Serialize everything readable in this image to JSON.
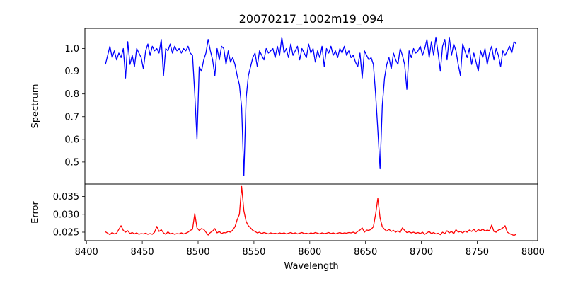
{
  "chart_data": [
    {
      "type": "line",
      "title": "20070217_1002m19_094",
      "xlabel": "",
      "ylabel": "Spectrum",
      "xlim": [
        8398.6,
        8804.2
      ],
      "ylim": [
        0.403,
        1.089
      ],
      "yticks": [
        0.5,
        0.6,
        0.7,
        0.8,
        0.9,
        1.0
      ],
      "ytick_labels": [
        "0.5",
        "0.6",
        "0.7",
        "0.8",
        "0.9",
        "1.0"
      ],
      "color": "#0000ff",
      "x_start": 8417,
      "x_step": 2,
      "values": [
        0.93,
        0.97,
        1.01,
        0.96,
        0.99,
        0.95,
        0.98,
        0.96,
        1.0,
        0.87,
        1.03,
        0.93,
        0.97,
        0.92,
        1.0,
        0.98,
        0.96,
        0.91,
        0.99,
        1.02,
        0.97,
        1.01,
        0.99,
        1.0,
        0.98,
        1.04,
        0.88,
        1.0,
        0.99,
        1.02,
        0.98,
        1.01,
        0.99,
        1.0,
        0.98,
        1.0,
        0.99,
        1.01,
        0.98,
        0.97,
        0.8,
        0.6,
        0.92,
        0.9,
        0.95,
        0.98,
        1.04,
        0.99,
        0.95,
        0.88,
        1.0,
        0.95,
        1.01,
        1.0,
        0.93,
        0.99,
        0.94,
        0.96,
        0.93,
        0.88,
        0.84,
        0.74,
        0.44,
        0.78,
        0.88,
        0.92,
        0.96,
        0.98,
        0.92,
        0.99,
        0.97,
        0.95,
        1.0,
        0.98,
        0.99,
        1.0,
        0.96,
        1.01,
        0.97,
        1.05,
        0.98,
        1.0,
        0.96,
        1.02,
        0.97,
        0.99,
        1.01,
        0.95,
        1.0,
        0.98,
        0.96,
        1.02,
        0.98,
        1.0,
        0.94,
        0.99,
        0.96,
        1.01,
        0.92,
        1.0,
        0.98,
        1.01,
        0.97,
        0.99,
        0.96,
        1.0,
        0.98,
        1.01,
        0.97,
        0.99,
        0.96,
        0.97,
        0.94,
        0.92,
        0.98,
        0.87,
        0.99,
        0.97,
        0.95,
        0.96,
        0.93,
        0.8,
        0.64,
        0.47,
        0.75,
        0.87,
        0.93,
        0.96,
        0.91,
        0.98,
        0.95,
        0.93,
        1.0,
        0.97,
        0.93,
        0.82,
        0.99,
        0.96,
        1.0,
        0.98,
        0.99,
        1.01,
        0.97,
        1.0,
        1.04,
        0.96,
        1.03,
        0.97,
        1.05,
        0.98,
        0.9,
        1.01,
        1.04,
        0.95,
        1.05,
        0.97,
        1.02,
        0.99,
        0.93,
        0.88,
        1.02,
        0.99,
        0.96,
        1.0,
        0.93,
        0.98,
        0.94,
        0.9,
        0.99,
        0.96,
        1.0,
        0.93,
        0.98,
        1.01,
        0.95,
        1.0,
        0.97,
        0.92,
        0.99,
        0.97,
        0.99,
        1.01,
        0.98,
        1.03,
        1.02
      ]
    },
    {
      "type": "line",
      "title": "",
      "xlabel": "Wavelength",
      "ylabel": "Error",
      "xlim": [
        8398.6,
        8804.2
      ],
      "ylim": [
        0.02262,
        0.03847
      ],
      "xticks": [
        8400,
        8450,
        8500,
        8550,
        8600,
        8650,
        8700,
        8750,
        8800
      ],
      "xtick_labels": [
        "8400",
        "8450",
        "8500",
        "8550",
        "8600",
        "8650",
        "8700",
        "8750",
        "8800"
      ],
      "yticks": [
        0.025,
        0.03,
        0.035
      ],
      "ytick_labels": [
        "0.025",
        "0.030",
        "0.035"
      ],
      "color": "#ff0000",
      "x_start": 8417,
      "x_step": 2,
      "values": [
        0.0251,
        0.0247,
        0.0243,
        0.0249,
        0.0245,
        0.0247,
        0.0258,
        0.0268,
        0.0255,
        0.025,
        0.0254,
        0.0246,
        0.0249,
        0.0245,
        0.0248,
        0.0244,
        0.0246,
        0.0245,
        0.0247,
        0.0244,
        0.0246,
        0.0244,
        0.025,
        0.0266,
        0.0252,
        0.0257,
        0.0248,
        0.0244,
        0.0251,
        0.0245,
        0.0247,
        0.0244,
        0.0246,
        0.0245,
        0.0248,
        0.0245,
        0.0247,
        0.025,
        0.0255,
        0.0258,
        0.0302,
        0.0262,
        0.0255,
        0.026,
        0.0258,
        0.025,
        0.0242,
        0.0249,
        0.0253,
        0.026,
        0.0248,
        0.0252,
        0.0246,
        0.0249,
        0.0248,
        0.0252,
        0.025,
        0.0256,
        0.0265,
        0.0285,
        0.03,
        0.0378,
        0.031,
        0.028,
        0.0268,
        0.0262,
        0.0255,
        0.0252,
        0.0248,
        0.025,
        0.0246,
        0.0249,
        0.0247,
        0.0245,
        0.0248,
        0.0246,
        0.0247,
        0.0245,
        0.0248,
        0.0246,
        0.0248,
        0.0245,
        0.0247,
        0.0249,
        0.0246,
        0.0248,
        0.0245,
        0.0247,
        0.0249,
        0.0246,
        0.0247,
        0.0245,
        0.0248,
        0.0246,
        0.0249,
        0.0247,
        0.0245,
        0.0248,
        0.0246,
        0.0247,
        0.0249,
        0.0246,
        0.0248,
        0.0245,
        0.0247,
        0.0249,
        0.0246,
        0.0248,
        0.0247,
        0.0249,
        0.0248,
        0.025,
        0.0247,
        0.0252,
        0.0256,
        0.0262,
        0.025,
        0.0256,
        0.0255,
        0.0258,
        0.0265,
        0.03,
        0.0345,
        0.029,
        0.0265,
        0.0258,
        0.0253,
        0.0258,
        0.0252,
        0.0255,
        0.025,
        0.0254,
        0.0249,
        0.0262,
        0.0255,
        0.0249,
        0.0251,
        0.0248,
        0.025,
        0.0247,
        0.0249,
        0.0246,
        0.025,
        0.0244,
        0.0248,
        0.0252,
        0.0246,
        0.0249,
        0.0245,
        0.0247,
        0.0243,
        0.025,
        0.0246,
        0.0254,
        0.0248,
        0.0252,
        0.0246,
        0.0257,
        0.025,
        0.0252,
        0.0248,
        0.0253,
        0.025,
        0.0256,
        0.0252,
        0.0258,
        0.0251,
        0.0257,
        0.0254,
        0.0259,
        0.0253,
        0.0256,
        0.0254,
        0.027,
        0.0252,
        0.025,
        0.0256,
        0.0258,
        0.0262,
        0.0268,
        0.025,
        0.0246,
        0.0243,
        0.0241,
        0.0244
      ]
    }
  ]
}
